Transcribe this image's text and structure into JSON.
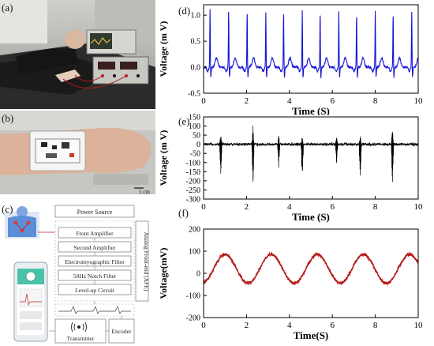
{
  "panel_labels": {
    "a": "(a)",
    "b": "(b)",
    "c": "(c)",
    "d": "(d)",
    "e": "(e)",
    "f": "(f)"
  },
  "scale_bar_label": "1 cm",
  "block_diagram": {
    "power_source": "Power Source",
    "front_amplifier": "Front Amplifier",
    "second_amplifier": "Second Amplifier",
    "emg_filter": "Electromyographic Filter",
    "notch_filter": "50Hz Notch Filter",
    "levelup_circuit": "Level-up Circuit",
    "afe_label": "Analog Front-end (AFE)",
    "transmitter": "Transmitter",
    "encoder": "Encoder"
  },
  "colors": {
    "ecg": "#1414d8",
    "emg": "#000000",
    "signal_f": "#d42020",
    "signal_f_core": "#7a1a10"
  },
  "chart_data": [
    {
      "type": "line",
      "panel": "(d)",
      "xlabel": "Time (S)",
      "ylabel": "Voltage (m V)",
      "xlim": [
        0,
        10
      ],
      "ylim": [
        -0.5,
        1.2
      ],
      "xticks": [
        0,
        2,
        4,
        6,
        8,
        10
      ],
      "yticks": [
        -0.5,
        0.0,
        0.5,
        1.0
      ],
      "ytick_labels": [
        "-0.5",
        "0.0",
        "0.5",
        "1.0"
      ],
      "series": [
        {
          "peak_times": [
            0.3,
            1.17,
            2.03,
            2.9,
            3.73,
            4.6,
            5.43,
            6.3,
            7.13,
            8.0,
            8.83,
            9.7
          ],
          "peak_values": [
            1.15,
            1.15,
            1.12,
            1.1,
            1.12,
            1.15,
            1.1,
            1.12,
            1.1,
            1.12,
            1.1,
            1.13
          ],
          "baseline": 0.0
        }
      ]
    },
    {
      "type": "line",
      "panel": "(e)",
      "xlabel": "Time (S)",
      "ylabel": "Voltage (m V)",
      "xlim": [
        0,
        10
      ],
      "ylim": [
        -300,
        150
      ],
      "xticks": [
        0,
        2,
        4,
        6,
        8,
        10
      ],
      "yticks": [
        -300,
        -250,
        -200,
        -150,
        -100,
        -50,
        0,
        50,
        100,
        150
      ],
      "ytick_labels": [
        "-300",
        "-250",
        "-200",
        "-150",
        "-100",
        "-50",
        "0",
        "50",
        "100",
        "150"
      ],
      "series": [
        {
          "burst_times": [
            0.8,
            2.3,
            3.5,
            4.6,
            6.2,
            7.3,
            8.8
          ],
          "burst_max": [
            60,
            110,
            50,
            40,
            55,
            60,
            95
          ],
          "burst_min": [
            -190,
            -270,
            -150,
            -240,
            -140,
            -220,
            -240
          ]
        }
      ]
    },
    {
      "type": "line",
      "panel": "(f)",
      "xlabel": "Time(S)",
      "ylabel": "Voltage(mV)",
      "xlim": [
        0,
        10
      ],
      "ylim": [
        -200,
        200
      ],
      "xticks": [
        0,
        2,
        4,
        6,
        8,
        10
      ],
      "yticks": [
        -200,
        -100,
        0,
        100,
        200
      ],
      "ytick_labels": [
        "-200",
        "-100",
        "0",
        "100",
        "200"
      ],
      "series": [
        {
          "waveform": "sine",
          "amplitude": 65,
          "offset": 20,
          "period": 2.15,
          "first_peak": 1.0
        }
      ]
    }
  ]
}
